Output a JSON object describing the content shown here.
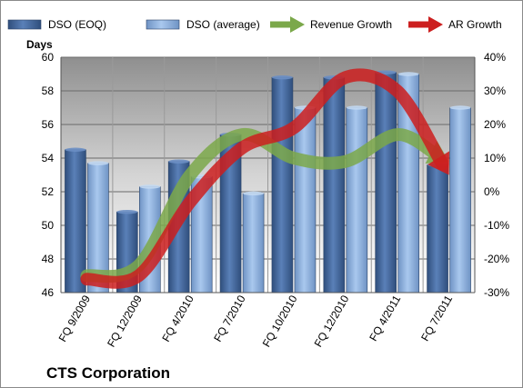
{
  "chart_data": {
    "type": "bar",
    "title": "CTS Corporation",
    "ylabel": "Days",
    "y2label": "",
    "xlabel": "",
    "categories": [
      "FQ 9/2009",
      "FQ 12/2009",
      "FQ 4/2010",
      "FQ 7/2010",
      "FQ 10/2010",
      "FQ 12/2010",
      "FQ 4/2011",
      "FQ 7/2011"
    ],
    "ylim": [
      46,
      60
    ],
    "y_ticks": [
      46,
      48,
      50,
      52,
      54,
      56,
      58,
      60
    ],
    "y2lim": [
      -30,
      40
    ],
    "y2_ticks": [
      "-30%",
      "-20%",
      "-10%",
      "0%",
      "10%",
      "20%",
      "30%",
      "40%"
    ],
    "grid": true,
    "legend_position": "top",
    "series": [
      {
        "name": "DSO (EOQ)",
        "kind": "bar",
        "color": "#4a6fa5",
        "values": [
          54.5,
          50.8,
          53.8,
          55.4,
          58.8,
          58.8,
          59.1,
          53.6
        ]
      },
      {
        "name": "DSO (average)",
        "kind": "bar",
        "color": "#8eb3df",
        "values": [
          53.7,
          52.3,
          52.9,
          51.9,
          57.0,
          57.0,
          59.0,
          57.0
        ]
      },
      {
        "name": "Revenue Growth",
        "kind": "arrow-line",
        "axis": "right",
        "color": "#7ba84a",
        "values": [
          -25,
          -22,
          5,
          17,
          10,
          9,
          17,
          9
        ]
      },
      {
        "name": "AR Growth",
        "kind": "arrow-line",
        "axis": "right",
        "color": "#cc1f1f",
        "values": [
          -26,
          -25,
          -3,
          13,
          19,
          34,
          30,
          5
        ]
      }
    ]
  }
}
